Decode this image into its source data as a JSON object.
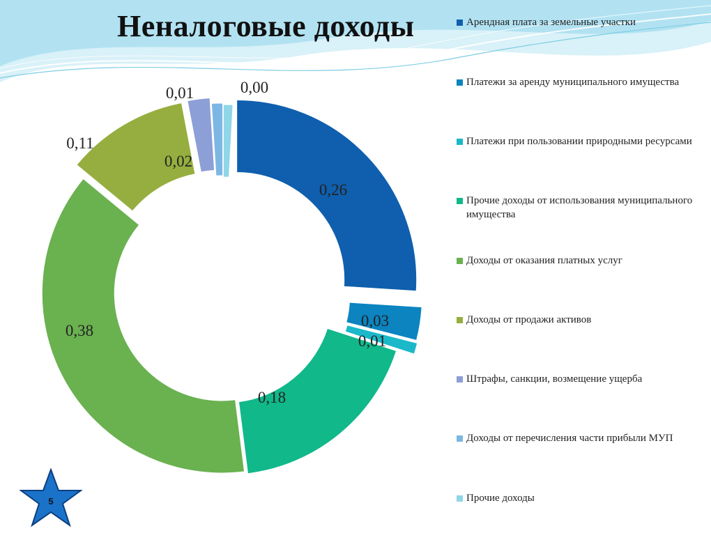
{
  "slide": {
    "title": "Неналоговые доходы",
    "page_number": "5"
  },
  "colors": {
    "wave_light": "#cfeef6",
    "wave_mid": "#8fd4e8",
    "star_fill": "#1a73c9",
    "star_stroke": "#0d3f80"
  },
  "chart_data": {
    "type": "donut",
    "title": "Неналоговые доходы",
    "legend_position": "right",
    "series": [
      {
        "name": "Арендная плата за земельные участки",
        "value": 0.26,
        "label": "0,26",
        "color": "#0f5fae"
      },
      {
        "name": "Платежи  за  аренду   муниципального имущества",
        "value": 0.03,
        "label": "0,03",
        "color": "#0b84c0"
      },
      {
        "name": "Платежи при пользовании природными ресурсами",
        "value": 0.01,
        "label": "0,01",
        "color": "#1ab8c8"
      },
      {
        "name": "Прочие доходы от использования муниципального имущества",
        "value": 0.18,
        "label": "0,18",
        "color": "#10b88a"
      },
      {
        "name": "Доходы от оказания платных услуг",
        "value": 0.38,
        "label": "0,38",
        "color": "#6ab150"
      },
      {
        "name": "Доходы  от  продажи   активов",
        "value": 0.11,
        "label": "0,11",
        "color": "#96ae3f"
      },
      {
        "name": "Штрафы, санкции, возмещение ущерба",
        "value": 0.02,
        "label": "0,02",
        "color": "#8c9fd6"
      },
      {
        "name": "Доходы от перечисления части прибыли МУП",
        "value": 0.01,
        "label": "0,01",
        "color": "#7cb7e4"
      },
      {
        "name": "Прочие доходы",
        "value": 0.0,
        "label": "0,00",
        "color": "#8fd6e8"
      }
    ]
  }
}
